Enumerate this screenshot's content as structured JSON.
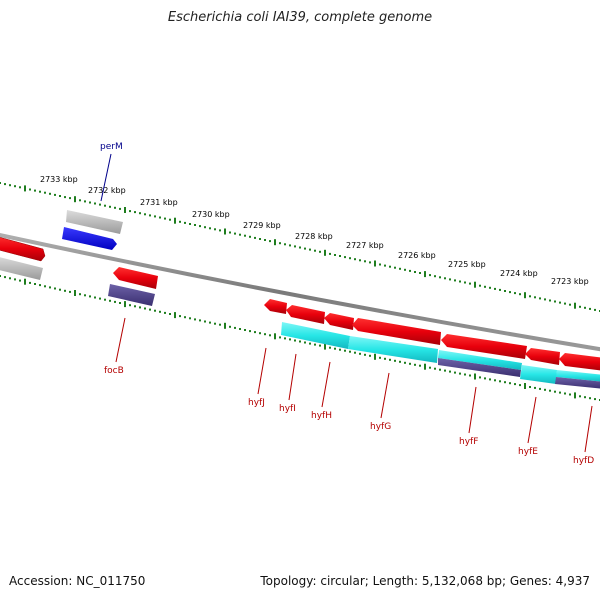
{
  "title": "Escherichia coli IAI39, complete genome",
  "accession": "Accession: NC_011750",
  "stats": "Topology: circular; Length: 5,132,068 bp; Genes: 4,937",
  "colors": {
    "backbone": "#8c8c8c",
    "ticks": "#1e7d1e",
    "gene_forward": "#e8000c",
    "gene_reverse": "#e8000c",
    "cds_cyan": "#27e6e6",
    "rna_purple": "#4b3f87",
    "forward_blue": "#0000e8",
    "pseudo_grey": "#b4b4b4",
    "label_blue": "#00008b",
    "label_red": "#b40000"
  },
  "kbp_labels": [
    "2733 kbp",
    "2732 kbp",
    "2731 kbp",
    "2730 kbp",
    "2729 kbp",
    "2728 kbp",
    "2727 kbp",
    "2726 kbp",
    "2725 kbp",
    "2724 kbp",
    "2723 kbp"
  ],
  "gene_labels": {
    "perM": "perM",
    "focB": "focB",
    "hyfJ": "hyfJ",
    "hyfI": "hyfI",
    "hyfH": "hyfH",
    "hyfG": "hyfG",
    "hyfF": "hyfF",
    "hyfE": "hyfE",
    "hyfD": "hyfD"
  }
}
